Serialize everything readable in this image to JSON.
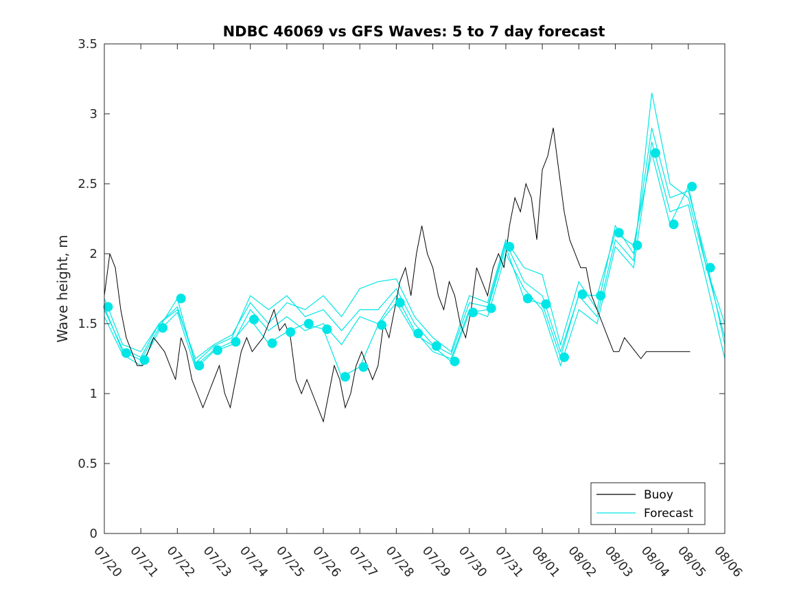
{
  "chart_data": {
    "type": "line",
    "title": "NDBC 46069 vs GFS Waves: 5 to 7 day forecast",
    "xlabel": "",
    "ylabel": "Wave height, m",
    "x_ticks": [
      "07/20",
      "07/21",
      "07/22",
      "07/23",
      "07/24",
      "07/25",
      "07/26",
      "07/27",
      "07/28",
      "07/29",
      "07/30",
      "07/31",
      "08/01",
      "08/02",
      "08/03",
      "08/04",
      "08/05",
      "08/06"
    ],
    "xlim_days": [
      0,
      17
    ],
    "ylim": [
      0,
      3.5
    ],
    "y_ticks": [
      "0",
      "0.5",
      "1",
      "1.5",
      "2",
      "2.5",
      "3",
      "3.5"
    ],
    "grid": false,
    "legend_position": "bottom-right",
    "colors": {
      "buoy": "#000000",
      "forecast": "#00e5e5",
      "axes": "#262626"
    },
    "legend": [
      {
        "name": "Buoy",
        "color": "#000000"
      },
      {
        "name": "Forecast",
        "color": "#00e5e5"
      }
    ],
    "buoy": {
      "name": "Buoy",
      "x": [
        0,
        0.15,
        0.3,
        0.45,
        0.6,
        0.75,
        0.9,
        1.05,
        1.2,
        1.35,
        1.5,
        1.65,
        1.8,
        1.95,
        2.1,
        2.25,
        2.4,
        2.55,
        2.7,
        2.85,
        3.0,
        3.15,
        3.3,
        3.45,
        3.6,
        3.75,
        3.9,
        4.05,
        4.2,
        4.35,
        4.5,
        4.65,
        4.8,
        4.95,
        5.1,
        5.25,
        5.4,
        5.55,
        5.7,
        5.85,
        6.0,
        6.15,
        6.3,
        6.45,
        6.6,
        6.75,
        6.9,
        7.05,
        7.2,
        7.35,
        7.5,
        7.65,
        7.8,
        7.95,
        8.1,
        8.25,
        8.4,
        8.55,
        8.7,
        8.85,
        9.0,
        9.15,
        9.3,
        9.45,
        9.6,
        9.75,
        9.9,
        10.05,
        10.2,
        10.35,
        10.5,
        10.65,
        10.8,
        10.95,
        11.1,
        11.25,
        11.4,
        11.55,
        11.7,
        11.85,
        12.0,
        12.15,
        12.3,
        12.45,
        12.6,
        12.75,
        12.9,
        13.05,
        13.2,
        13.35,
        13.5,
        13.65,
        13.8,
        13.95,
        14.1,
        14.25,
        14.4,
        14.55,
        14.7,
        14.85,
        15.0,
        15.15,
        15.3,
        15.45,
        15.6,
        15.75,
        15.9,
        16.05
      ],
      "values": [
        1.7,
        2.0,
        1.9,
        1.6,
        1.4,
        1.3,
        1.2,
        1.2,
        1.3,
        1.4,
        1.35,
        1.3,
        1.2,
        1.1,
        1.4,
        1.3,
        1.1,
        1.0,
        0.9,
        1.0,
        1.1,
        1.2,
        1.0,
        0.9,
        1.1,
        1.3,
        1.4,
        1.3,
        1.35,
        1.4,
        1.5,
        1.6,
        1.45,
        1.5,
        1.4,
        1.1,
        1.0,
        1.1,
        1.0,
        0.9,
        0.8,
        1.0,
        1.2,
        1.1,
        0.9,
        1.0,
        1.2,
        1.3,
        1.2,
        1.1,
        1.2,
        1.5,
        1.4,
        1.6,
        1.8,
        1.9,
        1.7,
        2.0,
        2.2,
        2.0,
        1.9,
        1.7,
        1.6,
        1.8,
        1.7,
        1.5,
        1.4,
        1.6,
        1.9,
        1.8,
        1.7,
        1.9,
        2.0,
        1.9,
        2.2,
        2.4,
        2.3,
        2.5,
        2.4,
        2.1,
        2.6,
        2.7,
        2.9,
        2.6,
        2.3,
        2.1,
        2.0,
        1.9,
        1.9,
        1.7,
        1.6,
        1.5,
        1.4,
        1.3,
        1.3,
        1.4,
        1.35,
        1.3,
        1.25,
        1.3,
        1.3,
        1.3,
        1.3,
        1.3,
        1.3,
        1.3,
        1.3,
        1.3
      ]
    },
    "forecast_series": [
      {
        "name": "Forecast",
        "x": [
          0,
          0.5,
          1,
          1.5,
          2,
          2.5,
          3,
          3.5,
          4,
          4.5,
          5,
          5.5,
          6,
          6.5,
          7,
          7.5,
          8,
          8.5,
          9,
          9.5,
          10,
          10.5,
          11,
          11.5,
          12,
          12.5,
          13,
          13.5,
          14,
          14.5,
          15,
          15.5,
          16,
          16.5,
          17
        ],
        "values": [
          1.62,
          1.3,
          1.24,
          1.47,
          1.68,
          1.2,
          1.31,
          1.37,
          1.53,
          1.36,
          1.44,
          1.5,
          1.46,
          1.12,
          1.19,
          1.49,
          1.65,
          1.43,
          1.34,
          1.23,
          1.58,
          1.6,
          2.05,
          1.68,
          1.64,
          1.26,
          1.71,
          1.7,
          2.15,
          2.06,
          2.72,
          2.21,
          2.48,
          1.9,
          1.4
        ]
      },
      {
        "name": "Forecast",
        "x": [
          0,
          0.5,
          1,
          1.5,
          2,
          2.5,
          3,
          3.5,
          4,
          4.5,
          5,
          5.5,
          6,
          6.5,
          7,
          7.5,
          8,
          8.5,
          9,
          9.5,
          10,
          10.5,
          11,
          11.5,
          12,
          12.5,
          13,
          13.5,
          14,
          14.5,
          15,
          15.5,
          16,
          16.5,
          17
        ],
        "values": [
          1.68,
          1.35,
          1.3,
          1.5,
          1.6,
          1.25,
          1.35,
          1.42,
          1.65,
          1.5,
          1.65,
          1.6,
          1.7,
          1.55,
          1.75,
          1.8,
          1.82,
          1.55,
          1.4,
          1.3,
          1.7,
          1.65,
          2.1,
          1.9,
          1.85,
          1.35,
          1.8,
          1.6,
          2.2,
          2.0,
          2.9,
          2.4,
          2.45,
          1.95,
          1.35
        ]
      },
      {
        "name": "Forecast",
        "x": [
          0,
          0.5,
          1,
          1.5,
          2,
          2.5,
          3,
          3.5,
          4,
          4.5,
          5,
          5.5,
          6,
          6.5,
          7,
          7.5,
          8,
          8.5,
          9,
          9.5,
          10,
          10.5,
          11,
          11.5,
          12,
          12.5,
          13,
          13.5,
          14,
          14.5,
          15,
          15.5,
          16,
          16.5,
          17
        ],
        "values": [
          1.55,
          1.28,
          1.2,
          1.45,
          1.58,
          1.18,
          1.3,
          1.35,
          1.6,
          1.45,
          1.55,
          1.45,
          1.5,
          1.35,
          1.55,
          1.5,
          1.7,
          1.45,
          1.3,
          1.25,
          1.6,
          1.55,
          2.0,
          1.75,
          1.6,
          1.2,
          1.6,
          1.5,
          2.05,
          1.9,
          2.8,
          2.3,
          2.35,
          1.8,
          1.25
        ]
      },
      {
        "name": "Forecast",
        "x": [
          0,
          0.5,
          1,
          1.5,
          2,
          2.5,
          3,
          3.5,
          4,
          4.5,
          5,
          5.5,
          6,
          6.5,
          7,
          7.5,
          8,
          8.5,
          9,
          9.5,
          10,
          10.5,
          11,
          11.5,
          12,
          12.5,
          13,
          13.5,
          14,
          14.5,
          15,
          15.5,
          16,
          16.5,
          17
        ],
        "values": [
          1.6,
          1.32,
          1.26,
          1.5,
          1.62,
          1.22,
          1.34,
          1.4,
          1.7,
          1.6,
          1.7,
          1.55,
          1.6,
          1.45,
          1.6,
          1.6,
          1.75,
          1.5,
          1.35,
          1.28,
          1.65,
          1.62,
          2.08,
          1.8,
          1.7,
          1.3,
          1.7,
          1.55,
          2.1,
          1.95,
          3.15,
          2.5,
          2.4,
          1.9,
          1.5
        ]
      }
    ],
    "forecast_markers": {
      "x": [
        0.1,
        0.6,
        1.1,
        1.6,
        2.1,
        2.6,
        3.1,
        3.6,
        4.1,
        4.6,
        5.1,
        5.6,
        6.1,
        6.6,
        7.1,
        7.6,
        8.1,
        8.6,
        9.1,
        9.6,
        10.1,
        10.6,
        11.1,
        11.6,
        12.1,
        12.6,
        13.1,
        13.6,
        14.1,
        14.6,
        15.1,
        15.6,
        16.1,
        16.6
      ],
      "values": [
        1.62,
        1.29,
        1.24,
        1.47,
        1.68,
        1.2,
        1.31,
        1.37,
        1.53,
        1.36,
        1.44,
        1.5,
        1.46,
        1.12,
        1.19,
        1.49,
        1.65,
        1.43,
        1.34,
        1.23,
        1.58,
        1.61,
        2.05,
        1.68,
        1.64,
        1.26,
        1.71,
        1.7,
        2.15,
        2.06,
        2.72,
        2.21,
        2.48,
        1.9
      ]
    }
  }
}
